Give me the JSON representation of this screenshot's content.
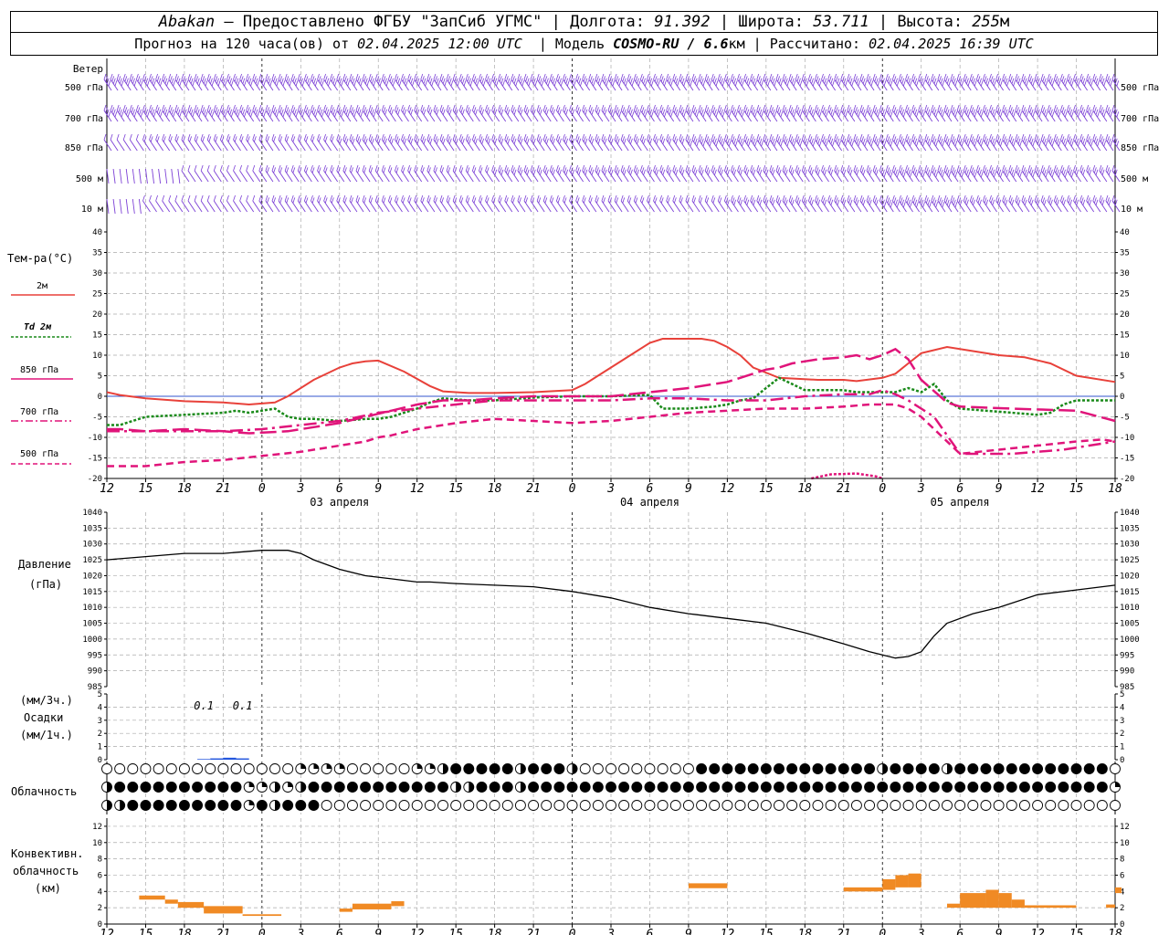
{
  "header": {
    "station": "Abakan",
    "dash": " — ",
    "provider": "Предоставлено ФГБУ \"ЗапСиб УГМС\"",
    "lon_label": "Долгота: ",
    "lon": "91.392",
    "lat_label": "Широта: ",
    "lat": "53.711",
    "alt_label": "Высота: ",
    "alt": "255",
    "alt_unit": "м",
    "forecast_label": "Прогноз на 120 часа(ов) от ",
    "forecast_time": "02.04.2025 12:00 UTC",
    "model_label": "Модель ",
    "model": "COSMO-RU / 6.6",
    "model_unit": "км",
    "calc_label": "Рассчитано: ",
    "calc_time": "02.04.2025 16:39 UTC"
  },
  "labels": {
    "wind": "Ветер",
    "wind_levels": [
      "500 гПа",
      "700 гПа",
      "850 гПа",
      "500 м",
      "10  м"
    ],
    "temp": "Тем-ра(°C)",
    "temp_legend": [
      "2м",
      "Td  2м",
      "850 гПа",
      "700 гПа",
      "500 гПа"
    ],
    "pressure": "Давление",
    "pressure_unit": "(гПа)",
    "precip_top": "(мм/3ч.)",
    "precip": "Осадки",
    "precip_bottom": "(мм/1ч.)",
    "cloud": "Облачность",
    "conv1": "Конвективн.",
    "conv2": "облачность",
    "conv3": "(км)",
    "precip_annotations": [
      "0.1",
      "0.1"
    ]
  },
  "chart_data": [
    {
      "type": "line",
      "title": "Тем-ра(°C)",
      "x_ticks": [
        "12",
        "15",
        "18",
        "21",
        "0",
        "3",
        "6",
        "9",
        "12",
        "15",
        "18",
        "21",
        "0",
        "3",
        "6",
        "9",
        "12",
        "15",
        "18",
        "21",
        "0",
        "3",
        "6",
        "9",
        "12",
        "15",
        "18"
      ],
      "date_labels": [
        "03 апреля",
        "04 апреля",
        "05 апреля"
      ],
      "x_hours": [
        0,
        3,
        6,
        9,
        12,
        15,
        18,
        21,
        24,
        27,
        30,
        33,
        36,
        39,
        42,
        45,
        48,
        51,
        54,
        57,
        60,
        63,
        66,
        69,
        72,
        75,
        78
      ],
      "ylim": [
        -20,
        40
      ],
      "y_ticks": [
        -20,
        -15,
        -10,
        -5,
        0,
        5,
        10,
        15,
        20,
        25,
        30,
        35,
        40
      ],
      "colors": {
        "t2m": "#e8413a",
        "td2m": "#1a8a1a",
        "t850": "#e0147a",
        "t700": "#e0147a",
        "t500": "#e0147a"
      },
      "series": [
        {
          "name": "2м",
          "x": [
            0,
            1,
            3,
            6,
            9,
            11,
            13,
            14,
            16,
            18,
            19,
            20,
            21,
            23,
            25,
            26,
            28,
            30,
            33,
            36,
            37,
            38,
            40,
            42,
            43,
            45,
            46,
            47,
            48,
            49,
            50,
            52,
            55,
            57,
            58,
            60,
            61,
            62,
            63,
            65,
            67,
            69,
            71,
            73,
            75,
            78
          ],
          "values": [
            1,
            0.3,
            -0.5,
            -1.2,
            -1.5,
            -2,
            -1.5,
            0,
            4,
            7,
            8,
            8.5,
            8.7,
            6,
            2.5,
            1.2,
            0.8,
            0.8,
            1,
            1.5,
            3,
            5,
            9,
            13,
            14,
            14,
            14,
            13.5,
            12,
            10,
            7,
            4.5,
            4,
            4,
            3.7,
            4.5,
            5.5,
            8,
            10.5,
            12,
            11,
            10,
            9.5,
            8,
            5,
            3.5
          ]
        },
        {
          "name": "Td  2м",
          "x": [
            0,
            1,
            2,
            3,
            6,
            9,
            10,
            11,
            13,
            14,
            15,
            16,
            18,
            20,
            21,
            22,
            24,
            25,
            26,
            28,
            30,
            33,
            36,
            39,
            42,
            43,
            45,
            47,
            48,
            49,
            50,
            51,
            52,
            53,
            54,
            57,
            58,
            60,
            61,
            62,
            63,
            64,
            65,
            66,
            68,
            70,
            72,
            73,
            74,
            75,
            76,
            78
          ],
          "values": [
            -7,
            -7,
            -6,
            -5,
            -4.5,
            -4,
            -3.5,
            -4,
            -3,
            -5,
            -5.5,
            -5.5,
            -6,
            -5.5,
            -5.5,
            -5,
            -3,
            -1.5,
            -0.5,
            -1,
            -1,
            -0.3,
            0,
            0,
            0.3,
            -3,
            -3,
            -2.5,
            -2,
            -1,
            -0.5,
            2,
            4.5,
            3,
            1.5,
            1.5,
            1,
            1,
            1,
            2,
            1,
            3,
            -1,
            -3,
            -3.5,
            -4,
            -4.5,
            -4,
            -2,
            -1,
            -1,
            -1
          ]
        },
        {
          "name": "850 гПа",
          "x": [
            0,
            1,
            3,
            6,
            9,
            11,
            14,
            16,
            18,
            20,
            22,
            24,
            26,
            28,
            30,
            33,
            36,
            39,
            42,
            45,
            48,
            50,
            51,
            52,
            53,
            55,
            57,
            58,
            59,
            60,
            61,
            62,
            63,
            65,
            66,
            70,
            75,
            78
          ],
          "values": [
            -8,
            -8,
            -8.5,
            -8,
            -8.5,
            -9,
            -8.5,
            -7.5,
            -6.5,
            -5,
            -3.5,
            -2,
            -1,
            -1,
            -0.5,
            0,
            0,
            0,
            1,
            2,
            3.5,
            5.5,
            6.5,
            7,
            8,
            9,
            9.5,
            10,
            9,
            10,
            11.5,
            9,
            4,
            -1.5,
            -2.5,
            -3,
            -3.5,
            -6
          ]
        },
        {
          "name": "700 гПа",
          "x": [
            0,
            3,
            6,
            9,
            12,
            15,
            18,
            21,
            24,
            27,
            30,
            33,
            36,
            39,
            42,
            45,
            48,
            51,
            54,
            57,
            59,
            60,
            61,
            62,
            63,
            64,
            66,
            70,
            74,
            78
          ],
          "values": [
            -8.5,
            -8.5,
            -8.5,
            -8.5,
            -8,
            -7,
            -6,
            -4,
            -3,
            -2,
            -1,
            -1,
            -1,
            -1,
            -0.5,
            -0.5,
            -1,
            -1,
            0,
            0.5,
            0.5,
            1.5,
            0.5,
            -1,
            -3,
            -5,
            -14,
            -14,
            -13,
            -11
          ]
        },
        {
          "name": "500 гПа",
          "x": [
            0,
            3,
            6,
            9,
            12,
            15,
            18,
            20,
            21,
            22,
            24,
            27,
            30,
            33,
            36,
            39,
            42,
            45,
            48,
            51,
            54,
            57,
            59,
            60,
            61,
            62,
            63,
            66,
            69,
            72,
            75,
            77,
            78
          ],
          "values": [
            -17,
            -17,
            -16,
            -15.5,
            -14.5,
            -13.5,
            -12,
            -11,
            -10,
            -9.5,
            -8,
            -6.5,
            -5.5,
            -6,
            -6.5,
            -6,
            -5,
            -4,
            -3.5,
            -3,
            -3,
            -2.5,
            -2,
            -2,
            -2,
            -3,
            -5,
            -14,
            -13,
            -12,
            -11,
            -10.5,
            -11
          ]
        }
      ]
    },
    {
      "type": "line",
      "title": "Давление",
      "ylabel": "(гПа)",
      "ylim": [
        985,
        1040
      ],
      "y_ticks": [
        985,
        990,
        995,
        1000,
        1005,
        1010,
        1015,
        1020,
        1025,
        1030,
        1035,
        1040
      ],
      "x": [
        0,
        3,
        6,
        9,
        12,
        13,
        14,
        15,
        16,
        18,
        20,
        22,
        24,
        25,
        27,
        30,
        33,
        36,
        39,
        42,
        45,
        48,
        51,
        54,
        57,
        59,
        60,
        61,
        62,
        63,
        64,
        65,
        67,
        69,
        72,
        75,
        78
      ],
      "values": [
        1025,
        1026,
        1027,
        1027,
        1028,
        1028,
        1028,
        1027,
        1025,
        1022,
        1020,
        1019,
        1018,
        1018,
        1017.5,
        1017,
        1016.5,
        1015,
        1013,
        1010,
        1008,
        1006.5,
        1005,
        1002,
        998.5,
        996,
        995,
        994,
        994.5,
        996,
        1001,
        1005,
        1008,
        1010,
        1014,
        1015.5,
        1017
      ]
    },
    {
      "type": "bar",
      "title": "Осадки",
      "ylim": [
        0,
        5
      ],
      "y_ticks": [
        0,
        1,
        2,
        3,
        4,
        5
      ],
      "x": [
        7,
        8,
        9,
        10
      ],
      "values": [
        0.05,
        0.1,
        0.15,
        0.1
      ],
      "annotations": [
        {
          "x": 7.5,
          "text": "0.1"
        },
        {
          "x": 10.5,
          "text": "0.1"
        }
      ]
    },
    {
      "type": "table",
      "title": "Облачность",
      "rows": 3,
      "interval_h": 1,
      "layers": [
        "0000000000000002222000002234444434443000000000444444444444443444434444444444440000000000000000000000000000000000000000000000000000000000000000000000000000000000000000000000000000000",
        "3444444444422323444444444443344434444444444444444444444444444444444444444444442200000000220000000000000000000000000000000000000000000000000000000000000000000000000000000000000000",
        "3344444444424344400000000000000000000000000000000000000000000000000000000000000000000000000000000000000000000000000000000000000000000000000000000000000000000000000000000000000000"
      ]
    },
    {
      "type": "bar",
      "title": "Конвективн. облачность",
      "ylabel": "(км)",
      "ylim": [
        0,
        13
      ],
      "y_ticks": [
        0,
        2,
        4,
        6,
        8,
        10,
        12
      ],
      "color": "#f08a24",
      "segments": [
        [
          2.5,
          4.5,
          3,
          3.5
        ],
        [
          4.5,
          5.5,
          2.5,
          3
        ],
        [
          5.5,
          7.5,
          2,
          2.7
        ],
        [
          7.5,
          10.5,
          1.3,
          2.2
        ],
        [
          10.5,
          13.5,
          1,
          1.2
        ],
        [
          18,
          19,
          1.5,
          1.9
        ],
        [
          19,
          22,
          1.8,
          2.5
        ],
        [
          22,
          23,
          2.2,
          2.8
        ],
        [
          45,
          48,
          4.4,
          5
        ],
        [
          57,
          60,
          4,
          4.5
        ],
        [
          60,
          61,
          4.2,
          5.5
        ],
        [
          61,
          62,
          4.5,
          6
        ],
        [
          62,
          63,
          4.5,
          6.2
        ],
        [
          65,
          66,
          2,
          2.5
        ],
        [
          66,
          68,
          2,
          3.8
        ],
        [
          68,
          69,
          2,
          4.2
        ],
        [
          69,
          70,
          2,
          3.8
        ],
        [
          70,
          71,
          2,
          3
        ],
        [
          71,
          75,
          2,
          2.3
        ],
        [
          77.3,
          78,
          2,
          2.4
        ],
        [
          78,
          78.5,
          3.8,
          4.5
        ]
      ]
    }
  ]
}
